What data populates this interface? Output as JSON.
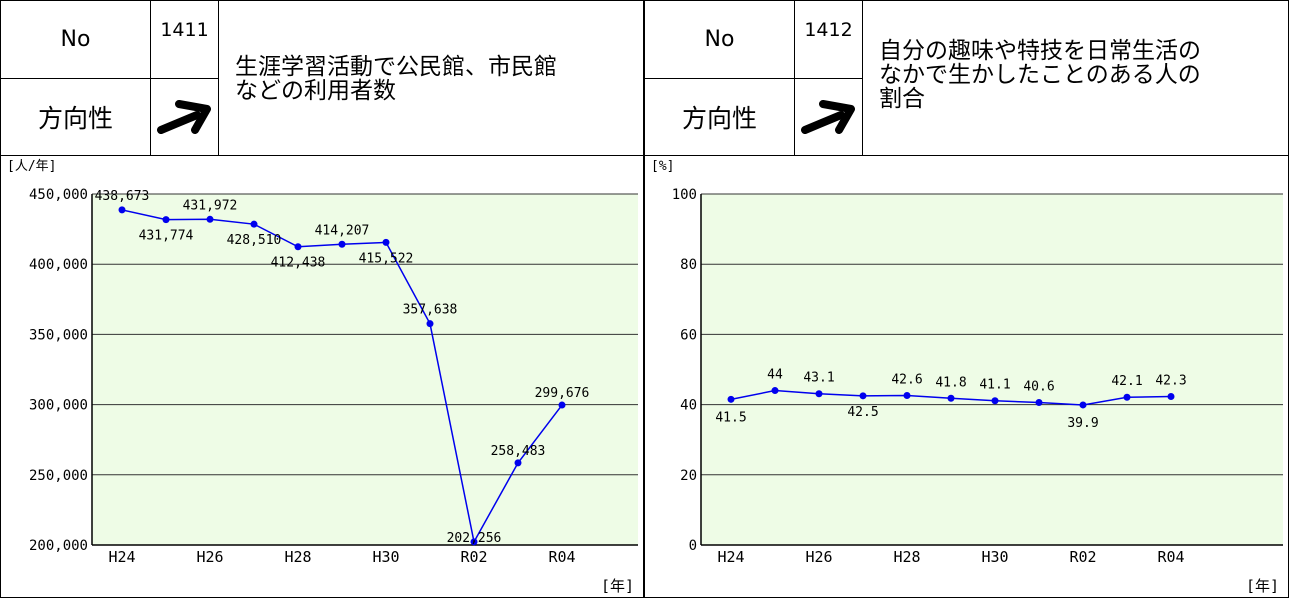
{
  "indicators": [
    {
      "no_label": "No",
      "no": "1411",
      "direction_label": "方向性",
      "title": "生涯学習活動で公民館、市民館\nなどの利用者数",
      "arrow_icon": "up-right-arrow-icon"
    },
    {
      "no_label": "No",
      "no": "1412",
      "direction_label": "方向性",
      "title": "自分の趣味や特技を日常生活の\nなかで生かしたことのある人の\n割合",
      "arrow_icon": "up-right-arrow-icon"
    }
  ],
  "chart_data": [
    {
      "type": "line",
      "unit_label": "[人/年]",
      "x_unit_label": "[年]",
      "x": [
        "H24",
        "H25",
        "H26",
        "H27",
        "H28",
        "H29",
        "H30",
        "R01",
        "R02",
        "R03",
        "R04"
      ],
      "x_tick_labels": [
        "H24",
        "H26",
        "H28",
        "H30",
        "R02",
        "R04"
      ],
      "y_tick_labels": [
        "450,000",
        "400,000",
        "350,000",
        "300,000",
        "250,000",
        "200,000"
      ],
      "values": [
        438673,
        431774,
        431972,
        428510,
        412438,
        414207,
        415522,
        357638,
        202256,
        258483,
        299676
      ],
      "data_labels": [
        "438,673",
        "431,774",
        "431,972",
        "428,510",
        "412,438",
        "414,207",
        "415,522",
        "357,638",
        "202,256",
        "258,483",
        "299,676"
      ],
      "ylim": [
        200000,
        450000
      ],
      "yticks": [
        200000,
        250000,
        300000,
        350000,
        400000,
        450000
      ],
      "grid": true,
      "plot_background": "#eefce6",
      "line_color": "#0000ee"
    },
    {
      "type": "line",
      "unit_label": "[%]",
      "x_unit_label": "[年]",
      "x": [
        "H24",
        "H25",
        "H26",
        "H27",
        "H28",
        "H29",
        "H30",
        "R01",
        "R02",
        "R03",
        "R04"
      ],
      "x_tick_labels": [
        "H24",
        "H26",
        "H28",
        "H30",
        "R02",
        "R04"
      ],
      "y_tick_labels": [
        "100",
        "80",
        "60",
        "40",
        "20",
        "0"
      ],
      "values": [
        41.5,
        44,
        43.1,
        42.5,
        42.6,
        41.8,
        41.1,
        40.6,
        39.9,
        42.1,
        42.3
      ],
      "data_labels": [
        "41.5",
        "44",
        "43.1",
        "42.5",
        "42.6",
        "41.8",
        "41.1",
        "40.6",
        "39.9",
        "42.1",
        "42.3"
      ],
      "ylim": [
        0,
        100
      ],
      "yticks": [
        0,
        20,
        40,
        60,
        80,
        100
      ],
      "grid": true,
      "plot_background": "#eefce6",
      "line_color": "#0000ee"
    }
  ]
}
